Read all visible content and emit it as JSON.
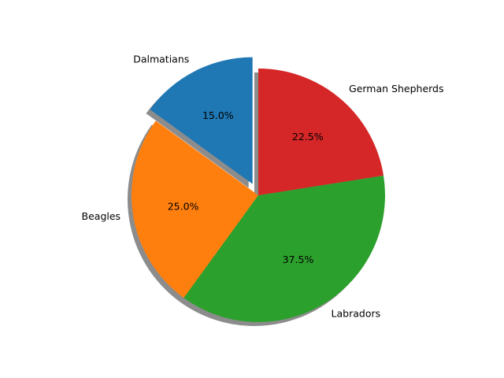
{
  "chart_data": {
    "type": "pie",
    "categories": [
      "Dalmatians",
      "Beagles",
      "Labradors",
      "German Shepherds"
    ],
    "values": [
      15,
      25,
      37.5,
      22.5
    ],
    "value_labels": [
      "15.0%",
      "25.0%",
      "37.5%",
      "22.5%"
    ],
    "colors": [
      "#1f77b4",
      "#ff7f0e",
      "#2ca02c",
      "#d62728"
    ],
    "explode": [
      0.1,
      0,
      0,
      0
    ],
    "shadow": true
  }
}
